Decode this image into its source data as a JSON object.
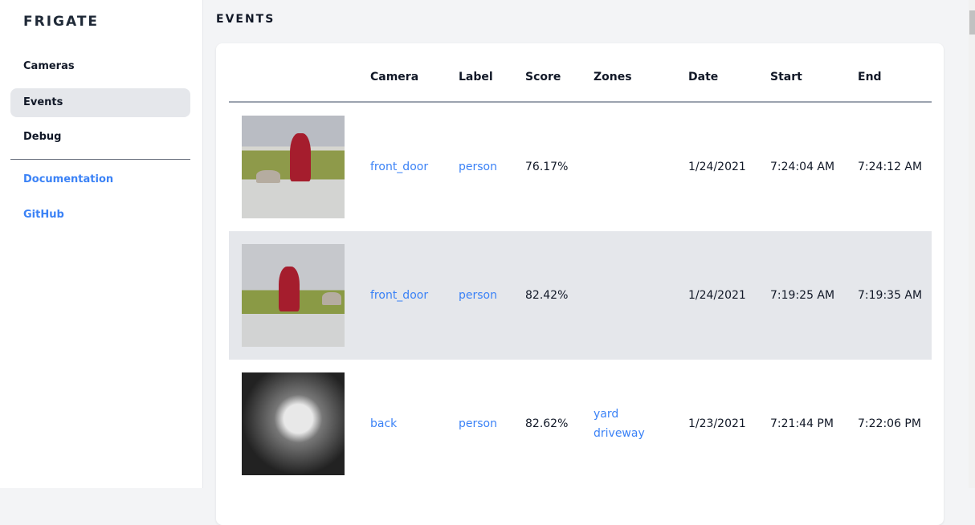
{
  "sidebar": {
    "brand": "FRIGATE",
    "items": [
      {
        "label": "Cameras"
      },
      {
        "label": "Events",
        "active": true
      },
      {
        "label": "Debug"
      }
    ],
    "links": [
      {
        "label": "Documentation"
      },
      {
        "label": "GitHub"
      }
    ]
  },
  "page": {
    "title": "EVENTS"
  },
  "table": {
    "headers": [
      "Camera",
      "Label",
      "Score",
      "Zones",
      "Date",
      "Start",
      "End"
    ],
    "rows": [
      {
        "camera": "front_door",
        "label": "person",
        "score": "76.17%",
        "zones": [
          "",
          ""
        ],
        "date": "1/24/2021",
        "start": "7:24:04 AM",
        "end": "7:24:12 AM"
      },
      {
        "camera": "front_door",
        "label": "person",
        "score": "82.42%",
        "zones": [
          "",
          ""
        ],
        "date": "1/24/2021",
        "start": "7:19:25 AM",
        "end": "7:19:35 AM"
      },
      {
        "camera": "back",
        "label": "person",
        "score": "82.62%",
        "zones": [
          "yard",
          "driveway"
        ],
        "date": "1/23/2021",
        "start": "7:21:44 PM",
        "end": "7:22:06 PM"
      }
    ]
  },
  "colors": {
    "link": "#3b82f6",
    "active_bg": "#e5e7eb"
  }
}
